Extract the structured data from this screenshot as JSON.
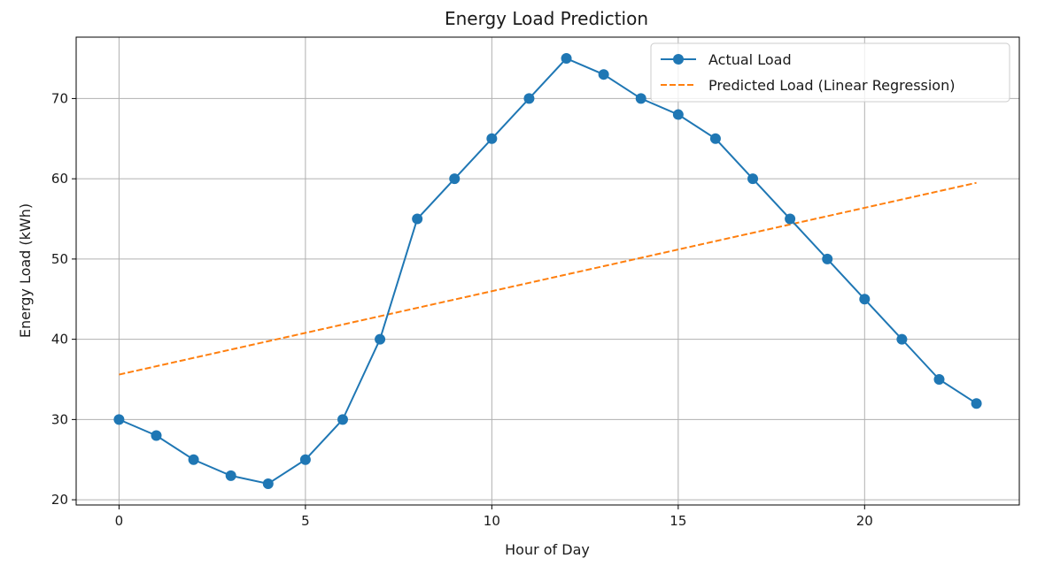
{
  "chart_data": {
    "type": "line",
    "title": "Energy Load Prediction",
    "xlabel": "Hour of Day",
    "ylabel": "Energy Load (kWh)",
    "xlim": [
      -1.15,
      24.15
    ],
    "ylim": [
      19.35,
      77.65
    ],
    "xticks": [
      0,
      5,
      10,
      15,
      20
    ],
    "yticks": [
      20,
      30,
      40,
      50,
      60,
      70
    ],
    "grid": true,
    "legend_position": "top-right",
    "x": [
      0,
      1,
      2,
      3,
      4,
      5,
      6,
      7,
      8,
      9,
      10,
      11,
      12,
      13,
      14,
      15,
      16,
      17,
      18,
      19,
      20,
      21,
      22,
      23
    ],
    "series": [
      {
        "name": "Actual Load",
        "style": "solid-markers",
        "color": "#1f77b4",
        "values": [
          30,
          28,
          25,
          23,
          22,
          25,
          30,
          40,
          55,
          60,
          65,
          70,
          75,
          73,
          70,
          68,
          65,
          60,
          55,
          50,
          45,
          40,
          35,
          32
        ]
      },
      {
        "name": "Predicted Load (Linear Regression)",
        "style": "dashed",
        "color": "#ff7f0e",
        "x": [
          0,
          23
        ],
        "values": [
          35.6,
          59.5
        ]
      }
    ]
  }
}
